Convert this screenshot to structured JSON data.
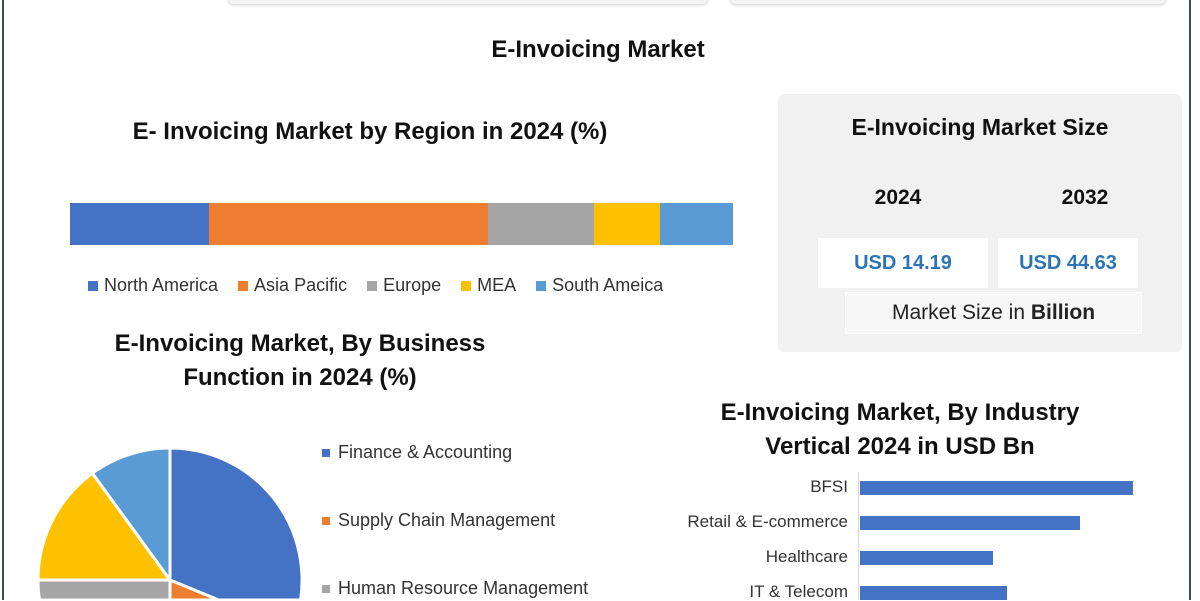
{
  "main_title": "E-Invoicing Market",
  "market_size": {
    "title": "E-Invoicing Market Size",
    "years": [
      "2024",
      "2032"
    ],
    "values": [
      "USD 14.19",
      "USD 44.63"
    ],
    "note_prefix": "Market Size in ",
    "note_bold": "Billion"
  },
  "chart_data": [
    {
      "type": "bar",
      "orientation": "stacked-horizontal",
      "title": "E- Invoicing Market by Region in 2024 (%)",
      "legend_position": "bottom",
      "series": [
        {
          "name": "North America",
          "value": 21,
          "color": "#4472c4"
        },
        {
          "name": "Asia Pacific",
          "value": 42,
          "color": "#ed7d31"
        },
        {
          "name": "Europe",
          "value": 16,
          "color": "#a5a5a5"
        },
        {
          "name": "MEA",
          "value": 10,
          "color": "#ffc000"
        },
        {
          "name": "South Ameica",
          "value": 11,
          "color": "#5b9bd5"
        }
      ]
    },
    {
      "type": "pie",
      "title": "E-Invoicing Market, By Business Function in 2024 (%)",
      "legend_position": "right",
      "slices": [
        {
          "name": "Finance & Accounting",
          "value": 44,
          "color": "#4472c4"
        },
        {
          "name": "Supply Chain Management",
          "value": 6,
          "color": "#ed7d31"
        },
        {
          "name": "Human Resource Management",
          "value": 25,
          "color": "#a5a5a5"
        },
        {
          "value": 15,
          "color": "#ffc000"
        },
        {
          "value": 10,
          "color": "#5b9bd5"
        }
      ]
    },
    {
      "type": "bar",
      "orientation": "horizontal",
      "title": "E-Invoicing Market, By Industry Vertical 2024 in USD Bn",
      "categories": [
        "BFSI",
        "Retail & E-commerce",
        "Healthcare",
        "IT & Telecom"
      ],
      "values": [
        4.1,
        3.3,
        2.0,
        2.2
      ],
      "color": "#4472c4",
      "xlim": [
        0,
        4.5
      ]
    }
  ]
}
